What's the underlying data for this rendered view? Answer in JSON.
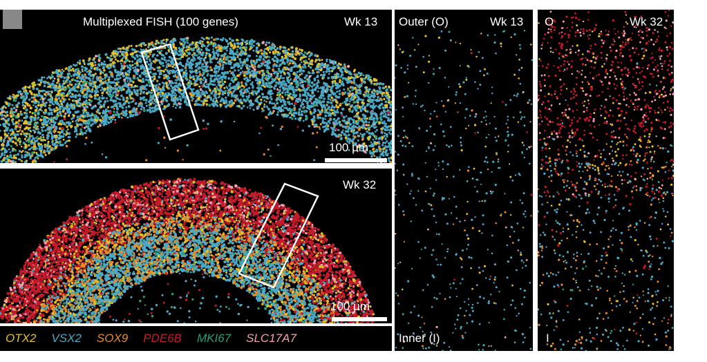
{
  "colors": {
    "OTX2": "#e3c228",
    "VSX2": "#4ba9c6",
    "SOX9": "#e88b2a",
    "PDE6B": "#c41a2b",
    "MKI67": "#2a9d74",
    "SLC17A7": "#f2a3b3"
  },
  "panels": {
    "top_left": {
      "title": "Multiplexed FISH (100 genes)",
      "week": "Wk 13",
      "scale": "100 µm"
    },
    "bottom_left": {
      "week": "Wk 32",
      "scale": "100 µm"
    },
    "middle": {
      "top_left": "Outer (O)",
      "week": "Wk 13",
      "bottom": "Inner (I)"
    },
    "right": {
      "top_left": "O",
      "week": "Wk 32",
      "bottom": "I"
    }
  },
  "legend": [
    {
      "gene": "OTX2",
      "color": "#e3c228"
    },
    {
      "gene": "VSX2",
      "color": "#4ba9c6"
    },
    {
      "gene": "SOX9",
      "color": "#e88b2a"
    },
    {
      "gene": "PDE6B",
      "color": "#c41a2b"
    },
    {
      "gene": "MKI67",
      "color": "#2a9d74"
    },
    {
      "gene": "SLC17A7",
      "color": "#f2a3b3"
    }
  ]
}
